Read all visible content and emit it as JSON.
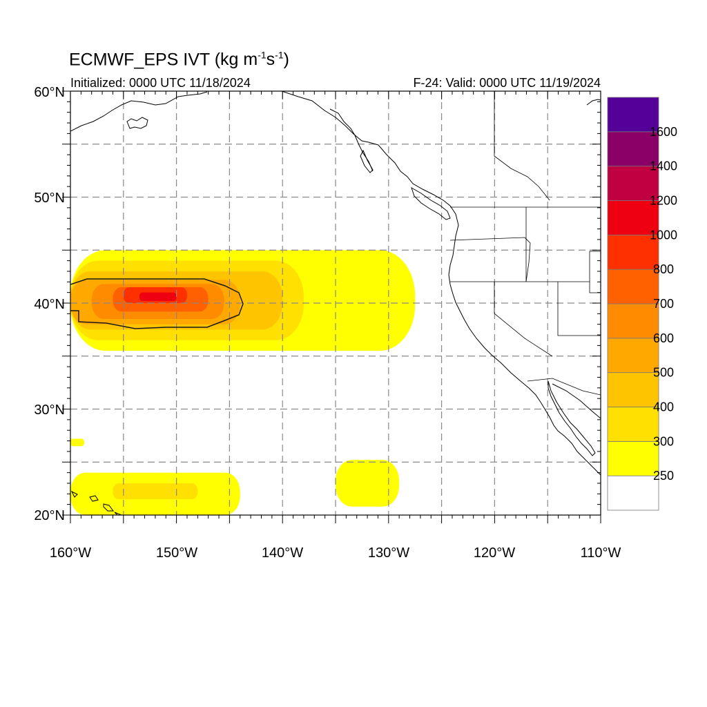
{
  "header": {
    "title": "ECMWF_EPS IVT",
    "title_units": "(kg m-1s-1)",
    "initialized": "Initialized: 0000 UTC 11/18/2024",
    "valid": "F-24: Valid: 0000 UTC 11/19/2024"
  },
  "map": {
    "lon_range": [
      -160,
      -110
    ],
    "lat_range": [
      20,
      60
    ],
    "x_ticks": [
      "160°W",
      "150°W",
      "140°W",
      "130°W",
      "120°W",
      "110°W"
    ],
    "y_ticks": [
      "20°N",
      "30°N",
      "40°N",
      "50°N",
      "60°N"
    ],
    "grid_interval_deg": 5,
    "gridlines": "dashed"
  },
  "colorbar": {
    "levels": [
      250,
      300,
      400,
      500,
      600,
      700,
      800,
      1000,
      1200,
      1400,
      1600
    ],
    "labels": [
      "250",
      "300",
      "400",
      "500",
      "600",
      "700",
      "800",
      "1000",
      "1200",
      "1400",
      "1600"
    ],
    "colors": [
      "#ffffff",
      "#ffff00",
      "#ffe000",
      "#ffc400",
      "#ffa800",
      "#ff8c00",
      "#ff6000",
      "#ff3000",
      "#ee0010",
      "#c00040",
      "#8b0066",
      "#550099"
    ]
  },
  "chart_data": {
    "type": "heatmap",
    "variable": "IVT",
    "units": "kg m-1 s-1",
    "regions": [
      {
        "level": 300,
        "color": "#ffff00",
        "lon": [
          -160,
          -127.5
        ],
        "lat": [
          35.5,
          45.0
        ]
      },
      {
        "level": 400,
        "color": "#ffe000",
        "lon": [
          -160,
          -138
        ],
        "lat": [
          36.5,
          44.0
        ]
      },
      {
        "level": 500,
        "color": "#ffc400",
        "lon": [
          -160,
          -140
        ],
        "lat": [
          37.5,
          43.0
        ]
      },
      {
        "level": 600,
        "color": "#ffa800",
        "lon": [
          -160,
          -144
        ],
        "lat": [
          38.0,
          42.2
        ]
      },
      {
        "level": 700,
        "color": "#ff8c00",
        "lon": [
          -158,
          -145.5
        ],
        "lat": [
          38.5,
          41.8
        ]
      },
      {
        "level": 800,
        "color": "#ff6000",
        "lon": [
          -156,
          -147
        ],
        "lat": [
          39.2,
          41.5
        ]
      },
      {
        "level": 1000,
        "color": "#ff3000",
        "lon": [
          -155,
          -149
        ],
        "lat": [
          40.0,
          41.5
        ]
      },
      {
        "level": 1200,
        "color": "#ee0010",
        "lon": [
          -153.5,
          -150
        ],
        "lat": [
          40.2,
          41.0
        ]
      },
      {
        "level": 300,
        "color": "#ffff00",
        "lon": [
          -160,
          -144
        ],
        "lat": [
          20.0,
          24.0
        ]
      },
      {
        "level": 400,
        "color": "#ffe000",
        "lon": [
          -156,
          -148
        ],
        "lat": [
          21.5,
          23.0
        ]
      },
      {
        "level": 300,
        "color": "#ffff00",
        "lon": [
          -135,
          -129
        ],
        "lat": [
          20.8,
          25.2
        ]
      },
      {
        "level": 300,
        "color": "#ffff00",
        "lon": [
          -160,
          -158.7
        ],
        "lat": [
          26.5,
          27.2
        ]
      }
    ]
  }
}
